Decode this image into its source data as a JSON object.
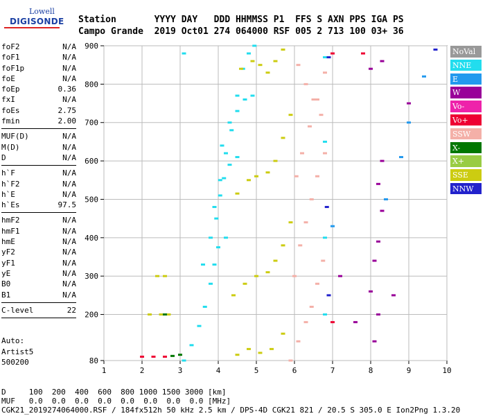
{
  "logo": {
    "top": "Lowell",
    "main": "DIGISONDE"
  },
  "header": {
    "line1": "Station       YYYY DAY   DDD HHMMSS P1  FFS S AXN PPS IGA PS",
    "line2": "Campo Grande  2019 Oct01 274 064000 RSF 005 2 713 100 03+ 36"
  },
  "params": {
    "group1": [
      {
        "name": "foF2",
        "value": "N/A"
      },
      {
        "name": "foF1",
        "value": "N/A"
      },
      {
        "name": "foF1p",
        "value": "N/A"
      },
      {
        "name": "foE",
        "value": "N/A"
      },
      {
        "name": "foEp",
        "value": "0.36"
      },
      {
        "name": "fxI",
        "value": "N/A"
      },
      {
        "name": "foEs",
        "value": "2.75"
      },
      {
        "name": "fmin",
        "value": "2.00"
      }
    ],
    "group2": [
      {
        "name": "MUF(D)",
        "value": "N/A"
      },
      {
        "name": "M(D)",
        "value": "N/A"
      },
      {
        "name": "D",
        "value": "N/A"
      }
    ],
    "group3": [
      {
        "name": "h`F",
        "value": "N/A"
      },
      {
        "name": "h`F2",
        "value": "N/A"
      },
      {
        "name": "h`E",
        "value": "N/A"
      },
      {
        "name": "h`Es",
        "value": "97.5"
      }
    ],
    "group4": [
      {
        "name": "hmF2",
        "value": "N/A"
      },
      {
        "name": "hmF1",
        "value": "N/A"
      },
      {
        "name": "hmE",
        "value": "N/A"
      },
      {
        "name": "yF2",
        "value": "N/A"
      },
      {
        "name": "yF1",
        "value": "N/A"
      },
      {
        "name": "yE",
        "value": "N/A"
      },
      {
        "name": "B0",
        "value": "N/A"
      },
      {
        "name": "B1",
        "value": "N/A"
      }
    ],
    "group5": [
      {
        "name": "C-level",
        "value": "22"
      }
    ],
    "footer": "Auto:\nArtist5\n500200"
  },
  "legend": [
    {
      "label": "NoVal",
      "color": "#999999"
    },
    {
      "label": "NNE",
      "color": "#22ddee"
    },
    {
      "label": "E",
      "color": "#2299ee"
    },
    {
      "label": "W",
      "color": "#990099"
    },
    {
      "label": "Vo-",
      "color": "#ee22aa"
    },
    {
      "label": "Vo+",
      "color": "#ee0033"
    },
    {
      "label": "SSW",
      "color": "#f4b0a8"
    },
    {
      "label": "X-",
      "color": "#007700"
    },
    {
      "label": "X+",
      "color": "#99cc44"
    },
    {
      "label": "SSE",
      "color": "#cccc11"
    },
    {
      "label": "NNW",
      "color": "#2222cc"
    }
  ],
  "footer": {
    "line1": "D     100  200  400  600  800 1000 1500 3000 [km]",
    "line2": "MUF   0.0  0.0  0.0  0.0  0.0  0.0  0.0  0.0 [MHz]",
    "line3": "CGK21_2019274064000.RSF / 184fx512h 50 kHz 2.5 km / DPS-4D CGK21 821 / 20.5 S 305.0 E Ion2Png 1.3.20"
  },
  "chart_data": {
    "type": "scatter",
    "xlim": [
      1,
      10
    ],
    "ylim": [
      80,
      900
    ],
    "xticks": [
      "1",
      "2",
      "3",
      "4",
      "5",
      "6",
      "7",
      "8",
      "9",
      "10"
    ],
    "yticks": [
      "80",
      "200",
      "300",
      "400",
      "500",
      "600",
      "700",
      "800",
      "900"
    ],
    "series": [
      {
        "color": "#22ddee",
        "points": [
          [
            3.1,
            80
          ],
          [
            3.3,
            120
          ],
          [
            3.5,
            170
          ],
          [
            3.65,
            220
          ],
          [
            3.8,
            280
          ],
          [
            3.9,
            330
          ],
          [
            4.0,
            375
          ],
          [
            4.2,
            400
          ],
          [
            3.6,
            330
          ],
          [
            3.8,
            400
          ],
          [
            3.95,
            450
          ],
          [
            4.05,
            510
          ],
          [
            4.15,
            555
          ],
          [
            4.3,
            590
          ],
          [
            4.5,
            610
          ],
          [
            3.9,
            480
          ],
          [
            4.05,
            550
          ],
          [
            4.2,
            620
          ],
          [
            4.35,
            680
          ],
          [
            4.5,
            730
          ],
          [
            4.7,
            760
          ],
          [
            4.9,
            770
          ],
          [
            4.1,
            640
          ],
          [
            4.3,
            700
          ],
          [
            4.5,
            770
          ],
          [
            4.65,
            840
          ],
          [
            4.8,
            880
          ],
          [
            4.95,
            900
          ],
          [
            3.1,
            880
          ],
          [
            6.8,
            200
          ],
          [
            6.8,
            400
          ],
          [
            6.8,
            650
          ],
          [
            6.8,
            870
          ]
        ]
      },
      {
        "color": "#2299ee",
        "points": [
          [
            9.4,
            820
          ],
          [
            9.0,
            700
          ],
          [
            8.8,
            610
          ],
          [
            8.4,
            500
          ],
          [
            7.0,
            430
          ]
        ]
      },
      {
        "color": "#cccc11",
        "points": [
          [
            4.5,
            95
          ],
          [
            4.8,
            110
          ],
          [
            5.1,
            100
          ],
          [
            5.4,
            110
          ],
          [
            5.7,
            150
          ],
          [
            4.4,
            250
          ],
          [
            4.7,
            280
          ],
          [
            5.0,
            300
          ],
          [
            5.3,
            310
          ],
          [
            5.5,
            340
          ],
          [
            5.7,
            380
          ],
          [
            5.9,
            440
          ],
          [
            4.5,
            515
          ],
          [
            4.8,
            550
          ],
          [
            5.0,
            560
          ],
          [
            5.3,
            570
          ],
          [
            5.5,
            600
          ],
          [
            5.7,
            660
          ],
          [
            5.9,
            720
          ],
          [
            4.6,
            840
          ],
          [
            4.9,
            860
          ],
          [
            5.1,
            850
          ],
          [
            5.3,
            830
          ],
          [
            5.5,
            860
          ],
          [
            5.7,
            890
          ],
          [
            2.2,
            200
          ],
          [
            2.5,
            200
          ],
          [
            2.7,
            200
          ],
          [
            2.4,
            300
          ],
          [
            2.6,
            300
          ]
        ]
      },
      {
        "color": "#f4b0a8",
        "points": [
          [
            5.9,
            80
          ],
          [
            6.1,
            130
          ],
          [
            6.3,
            180
          ],
          [
            6.45,
            220
          ],
          [
            6.6,
            280
          ],
          [
            6.75,
            340
          ],
          [
            6.0,
            300
          ],
          [
            6.15,
            380
          ],
          [
            6.3,
            440
          ],
          [
            6.45,
            500
          ],
          [
            6.6,
            560
          ],
          [
            6.8,
            620
          ],
          [
            6.05,
            560
          ],
          [
            6.2,
            620
          ],
          [
            6.4,
            690
          ],
          [
            6.6,
            760
          ],
          [
            6.8,
            830
          ],
          [
            6.1,
            850
          ],
          [
            6.3,
            800
          ],
          [
            6.5,
            760
          ],
          [
            6.7,
            720
          ]
        ]
      },
      {
        "color": "#990099",
        "points": [
          [
            8.1,
            130
          ],
          [
            8.2,
            200
          ],
          [
            8.0,
            260
          ],
          [
            8.1,
            340
          ],
          [
            8.2,
            390
          ],
          [
            8.3,
            470
          ],
          [
            8.2,
            540
          ],
          [
            8.3,
            600
          ],
          [
            8.0,
            840
          ],
          [
            8.3,
            860
          ],
          [
            9.0,
            750
          ],
          [
            8.6,
            250
          ],
          [
            7.2,
            300
          ],
          [
            7.6,
            180
          ]
        ]
      },
      {
        "color": "#ee0033",
        "points": [
          [
            2.0,
            90
          ],
          [
            2.3,
            90
          ],
          [
            2.6,
            90
          ],
          [
            7.0,
            880
          ],
          [
            7.8,
            880
          ],
          [
            7.0,
            180
          ]
        ]
      },
      {
        "color": "#007700",
        "points": [
          [
            2.8,
            92
          ],
          [
            3.0,
            95
          ],
          [
            2.6,
            200
          ]
        ]
      },
      {
        "color": "#2222cc",
        "points": [
          [
            6.9,
            870
          ],
          [
            6.85,
            480
          ],
          [
            6.9,
            250
          ],
          [
            9.7,
            890
          ]
        ]
      }
    ]
  }
}
